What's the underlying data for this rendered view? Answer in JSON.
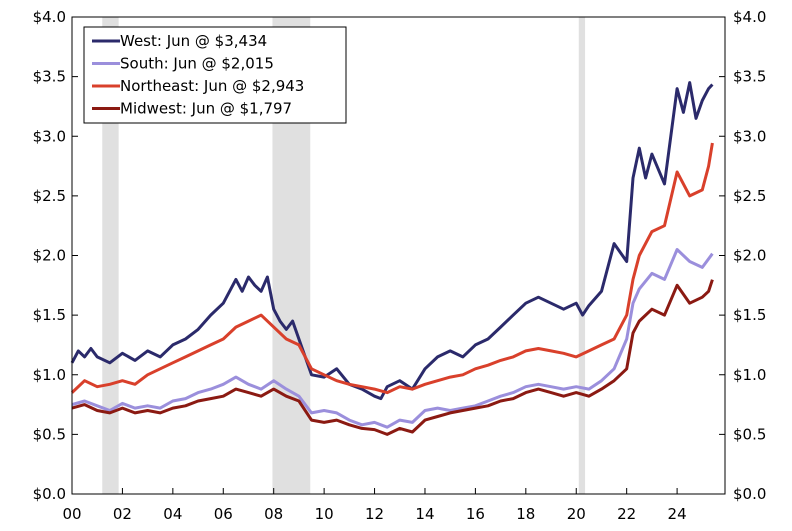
{
  "chart_data": {
    "type": "line",
    "title": "",
    "xlabel": "",
    "ylabel": "",
    "xlim": [
      2000,
      2025.9
    ],
    "ylim": [
      0,
      4
    ],
    "x_ticks": [
      {
        "value": 2000,
        "label": "00"
      },
      {
        "value": 2002,
        "label": "02"
      },
      {
        "value": 2004,
        "label": "04"
      },
      {
        "value": 2006,
        "label": "06"
      },
      {
        "value": 2008,
        "label": "08"
      },
      {
        "value": 2010,
        "label": "10"
      },
      {
        "value": 2012,
        "label": "12"
      },
      {
        "value": 2014,
        "label": "14"
      },
      {
        "value": 2016,
        "label": "16"
      },
      {
        "value": 2018,
        "label": "18"
      },
      {
        "value": 2020,
        "label": "20"
      },
      {
        "value": 2022,
        "label": "22"
      },
      {
        "value": 2024,
        "label": "24"
      }
    ],
    "y_ticks": [
      {
        "value": 0,
        "label": "$0.0"
      },
      {
        "value": 0.5,
        "label": "$0.5"
      },
      {
        "value": 1,
        "label": "$1.0"
      },
      {
        "value": 1.5,
        "label": "$1.5"
      },
      {
        "value": 2,
        "label": "$2.0"
      },
      {
        "value": 2.5,
        "label": "$2.5"
      },
      {
        "value": 3,
        "label": "$3.0"
      },
      {
        "value": 3.5,
        "label": "$3.5"
      },
      {
        "value": 4,
        "label": "$4.0"
      }
    ],
    "recession_bands": [
      [
        2001.2,
        2001.85
      ],
      [
        2007.95,
        2009.45
      ],
      [
        2020.1,
        2020.35
      ]
    ],
    "grid": false,
    "legend_position": "top-left",
    "series": [
      {
        "name": "West: Jun @ $3,434",
        "color": "#2b2a6b",
        "points": [
          [
            2000,
            1.1
          ],
          [
            2000.25,
            1.2
          ],
          [
            2000.5,
            1.15
          ],
          [
            2000.75,
            1.22
          ],
          [
            2001,
            1.15
          ],
          [
            2001.5,
            1.1
          ],
          [
            2002,
            1.18
          ],
          [
            2002.5,
            1.12
          ],
          [
            2003,
            1.2
          ],
          [
            2003.5,
            1.15
          ],
          [
            2004,
            1.25
          ],
          [
            2004.5,
            1.3
          ],
          [
            2005,
            1.38
          ],
          [
            2005.5,
            1.5
          ],
          [
            2006,
            1.6
          ],
          [
            2006.5,
            1.8
          ],
          [
            2006.75,
            1.7
          ],
          [
            2007,
            1.82
          ],
          [
            2007.25,
            1.75
          ],
          [
            2007.5,
            1.7
          ],
          [
            2007.75,
            1.82
          ],
          [
            2008,
            1.55
          ],
          [
            2008.25,
            1.45
          ],
          [
            2008.5,
            1.38
          ],
          [
            2008.75,
            1.45
          ],
          [
            2009,
            1.3
          ],
          [
            2009.5,
            1.0
          ],
          [
            2010,
            0.98
          ],
          [
            2010.5,
            1.05
          ],
          [
            2011,
            0.92
          ],
          [
            2011.5,
            0.88
          ],
          [
            2012,
            0.82
          ],
          [
            2012.25,
            0.8
          ],
          [
            2012.5,
            0.9
          ],
          [
            2013,
            0.95
          ],
          [
            2013.5,
            0.88
          ],
          [
            2014,
            1.05
          ],
          [
            2014.5,
            1.15
          ],
          [
            2015,
            1.2
          ],
          [
            2015.5,
            1.15
          ],
          [
            2016,
            1.25
          ],
          [
            2016.5,
            1.3
          ],
          [
            2017,
            1.4
          ],
          [
            2017.5,
            1.5
          ],
          [
            2018,
            1.6
          ],
          [
            2018.5,
            1.65
          ],
          [
            2019,
            1.6
          ],
          [
            2019.5,
            1.55
          ],
          [
            2020,
            1.6
          ],
          [
            2020.25,
            1.5
          ],
          [
            2020.5,
            1.58
          ],
          [
            2021,
            1.7
          ],
          [
            2021.5,
            2.1
          ],
          [
            2022,
            1.95
          ],
          [
            2022.25,
            2.65
          ],
          [
            2022.5,
            2.9
          ],
          [
            2022.75,
            2.65
          ],
          [
            2023,
            2.85
          ],
          [
            2023.5,
            2.6
          ],
          [
            2024,
            3.4
          ],
          [
            2024.25,
            3.2
          ],
          [
            2024.5,
            3.45
          ],
          [
            2024.75,
            3.15
          ],
          [
            2025,
            3.3
          ],
          [
            2025.25,
            3.4
          ],
          [
            2025.4,
            3.434
          ]
        ]
      },
      {
        "name": "South: Jun @ $2,015",
        "color": "#9b8fdc",
        "points": [
          [
            2000,
            0.75
          ],
          [
            2000.5,
            0.78
          ],
          [
            2001,
            0.74
          ],
          [
            2001.5,
            0.7
          ],
          [
            2002,
            0.76
          ],
          [
            2002.5,
            0.72
          ],
          [
            2003,
            0.74
          ],
          [
            2003.5,
            0.72
          ],
          [
            2004,
            0.78
          ],
          [
            2004.5,
            0.8
          ],
          [
            2005,
            0.85
          ],
          [
            2005.5,
            0.88
          ],
          [
            2006,
            0.92
          ],
          [
            2006.5,
            0.98
          ],
          [
            2007,
            0.92
          ],
          [
            2007.5,
            0.88
          ],
          [
            2008,
            0.95
          ],
          [
            2008.5,
            0.88
          ],
          [
            2009,
            0.82
          ],
          [
            2009.5,
            0.68
          ],
          [
            2010,
            0.7
          ],
          [
            2010.5,
            0.68
          ],
          [
            2011,
            0.62
          ],
          [
            2011.5,
            0.58
          ],
          [
            2012,
            0.6
          ],
          [
            2012.5,
            0.56
          ],
          [
            2013,
            0.62
          ],
          [
            2013.5,
            0.6
          ],
          [
            2014,
            0.7
          ],
          [
            2014.5,
            0.72
          ],
          [
            2015,
            0.7
          ],
          [
            2015.5,
            0.72
          ],
          [
            2016,
            0.74
          ],
          [
            2016.5,
            0.78
          ],
          [
            2017,
            0.82
          ],
          [
            2017.5,
            0.85
          ],
          [
            2018,
            0.9
          ],
          [
            2018.5,
            0.92
          ],
          [
            2019,
            0.9
          ],
          [
            2019.5,
            0.88
          ],
          [
            2020,
            0.9
          ],
          [
            2020.5,
            0.88
          ],
          [
            2021,
            0.95
          ],
          [
            2021.5,
            1.05
          ],
          [
            2022,
            1.3
          ],
          [
            2022.25,
            1.6
          ],
          [
            2022.5,
            1.72
          ],
          [
            2023,
            1.85
          ],
          [
            2023.5,
            1.8
          ],
          [
            2024,
            2.05
          ],
          [
            2024.5,
            1.95
          ],
          [
            2025,
            1.9
          ],
          [
            2025.4,
            2.015
          ]
        ]
      },
      {
        "name": "Northeast: Jun @ $2,943",
        "color": "#d9402b",
        "points": [
          [
            2000,
            0.85
          ],
          [
            2000.5,
            0.95
          ],
          [
            2001,
            0.9
          ],
          [
            2001.5,
            0.92
          ],
          [
            2002,
            0.95
          ],
          [
            2002.5,
            0.92
          ],
          [
            2003,
            1.0
          ],
          [
            2003.5,
            1.05
          ],
          [
            2004,
            1.1
          ],
          [
            2004.5,
            1.15
          ],
          [
            2005,
            1.2
          ],
          [
            2005.5,
            1.25
          ],
          [
            2006,
            1.3
          ],
          [
            2006.5,
            1.4
          ],
          [
            2007,
            1.45
          ],
          [
            2007.5,
            1.5
          ],
          [
            2008,
            1.4
          ],
          [
            2008.5,
            1.3
          ],
          [
            2009,
            1.25
          ],
          [
            2009.5,
            1.05
          ],
          [
            2010,
            1.0
          ],
          [
            2010.5,
            0.95
          ],
          [
            2011,
            0.92
          ],
          [
            2011.5,
            0.9
          ],
          [
            2012,
            0.88
          ],
          [
            2012.5,
            0.85
          ],
          [
            2013,
            0.9
          ],
          [
            2013.5,
            0.88
          ],
          [
            2014,
            0.92
          ],
          [
            2014.5,
            0.95
          ],
          [
            2015,
            0.98
          ],
          [
            2015.5,
            1.0
          ],
          [
            2016,
            1.05
          ],
          [
            2016.5,
            1.08
          ],
          [
            2017,
            1.12
          ],
          [
            2017.5,
            1.15
          ],
          [
            2018,
            1.2
          ],
          [
            2018.5,
            1.22
          ],
          [
            2019,
            1.2
          ],
          [
            2019.5,
            1.18
          ],
          [
            2020,
            1.15
          ],
          [
            2020.5,
            1.2
          ],
          [
            2021,
            1.25
          ],
          [
            2021.5,
            1.3
          ],
          [
            2022,
            1.5
          ],
          [
            2022.25,
            1.8
          ],
          [
            2022.5,
            2.0
          ],
          [
            2023,
            2.2
          ],
          [
            2023.5,
            2.25
          ],
          [
            2024,
            2.7
          ],
          [
            2024.5,
            2.5
          ],
          [
            2025,
            2.55
          ],
          [
            2025.25,
            2.75
          ],
          [
            2025.4,
            2.943
          ]
        ]
      },
      {
        "name": "Midwest: Jun @ $1,797",
        "color": "#8b1a12",
        "points": [
          [
            2000,
            0.72
          ],
          [
            2000.5,
            0.75
          ],
          [
            2001,
            0.7
          ],
          [
            2001.5,
            0.68
          ],
          [
            2002,
            0.72
          ],
          [
            2002.5,
            0.68
          ],
          [
            2003,
            0.7
          ],
          [
            2003.5,
            0.68
          ],
          [
            2004,
            0.72
          ],
          [
            2004.5,
            0.74
          ],
          [
            2005,
            0.78
          ],
          [
            2005.5,
            0.8
          ],
          [
            2006,
            0.82
          ],
          [
            2006.5,
            0.88
          ],
          [
            2007,
            0.85
          ],
          [
            2007.5,
            0.82
          ],
          [
            2008,
            0.88
          ],
          [
            2008.5,
            0.82
          ],
          [
            2009,
            0.78
          ],
          [
            2009.5,
            0.62
          ],
          [
            2010,
            0.6
          ],
          [
            2010.5,
            0.62
          ],
          [
            2011,
            0.58
          ],
          [
            2011.5,
            0.55
          ],
          [
            2012,
            0.54
          ],
          [
            2012.5,
            0.5
          ],
          [
            2013,
            0.55
          ],
          [
            2013.5,
            0.52
          ],
          [
            2014,
            0.62
          ],
          [
            2014.5,
            0.65
          ],
          [
            2015,
            0.68
          ],
          [
            2015.5,
            0.7
          ],
          [
            2016,
            0.72
          ],
          [
            2016.5,
            0.74
          ],
          [
            2017,
            0.78
          ],
          [
            2017.5,
            0.8
          ],
          [
            2018,
            0.85
          ],
          [
            2018.5,
            0.88
          ],
          [
            2019,
            0.85
          ],
          [
            2019.5,
            0.82
          ],
          [
            2020,
            0.85
          ],
          [
            2020.5,
            0.82
          ],
          [
            2021,
            0.88
          ],
          [
            2021.5,
            0.95
          ],
          [
            2022,
            1.05
          ],
          [
            2022.25,
            1.35
          ],
          [
            2022.5,
            1.45
          ],
          [
            2023,
            1.55
          ],
          [
            2023.5,
            1.5
          ],
          [
            2024,
            1.75
          ],
          [
            2024.5,
            1.6
          ],
          [
            2025,
            1.65
          ],
          [
            2025.25,
            1.7
          ],
          [
            2025.4,
            1.797
          ]
        ]
      }
    ]
  }
}
